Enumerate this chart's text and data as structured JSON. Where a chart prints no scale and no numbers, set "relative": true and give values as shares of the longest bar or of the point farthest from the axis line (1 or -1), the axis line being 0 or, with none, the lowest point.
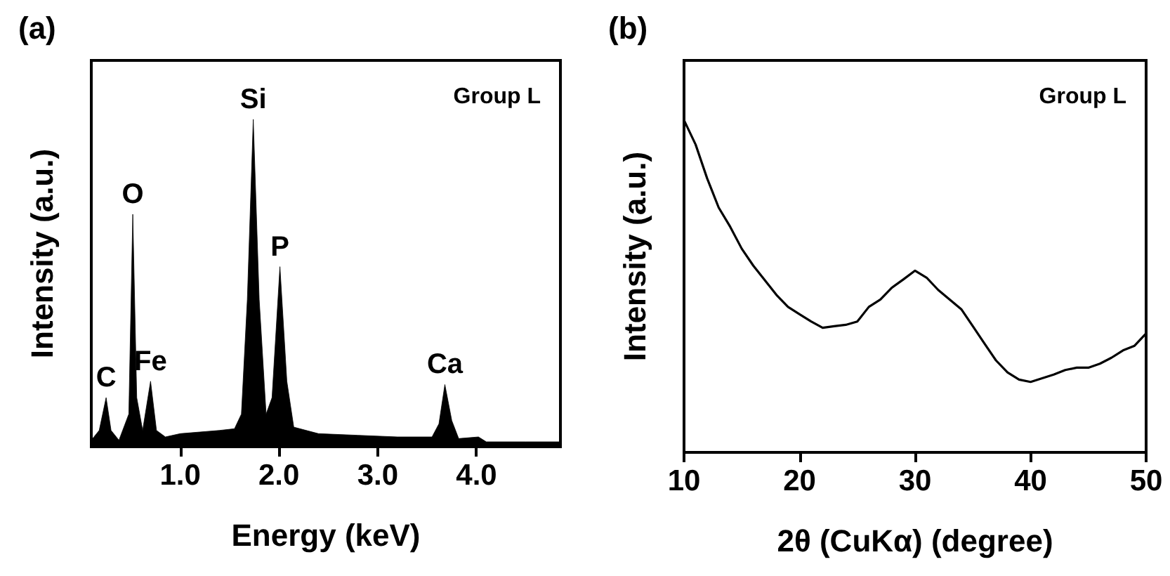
{
  "chart_data": [
    {
      "type": "area",
      "title": "(a)",
      "xlabel": "Energy (keV)",
      "ylabel": "Intensity (a.u.)",
      "relative": true,
      "color": "#000000",
      "xlim": [
        0.1,
        4.85
      ],
      "xticks": [
        {
          "value": 1,
          "label": "1.0"
        },
        {
          "value": 2,
          "label": "2.0"
        },
        {
          "value": 3,
          "label": "3.0"
        },
        {
          "value": 4,
          "label": "4.0"
        }
      ],
      "x": [
        0.1,
        0.18,
        0.25,
        0.3,
        0.38,
        0.48,
        0.52,
        0.56,
        0.62,
        0.7,
        0.76,
        0.85,
        1.0,
        1.2,
        1.4,
        1.55,
        1.62,
        1.68,
        1.74,
        1.8,
        1.87,
        1.93,
        2.01,
        2.08,
        2.15,
        2.4,
        2.8,
        3.2,
        3.55,
        3.62,
        3.68,
        3.75,
        3.82,
        4.02,
        4.1,
        4.5,
        4.85
      ],
      "values": [
        0.02,
        0.05,
        0.15,
        0.05,
        0.02,
        0.1,
        0.71,
        0.15,
        0.05,
        0.2,
        0.05,
        0.03,
        0.04,
        0.045,
        0.05,
        0.055,
        0.1,
        0.45,
        1.0,
        0.45,
        0.1,
        0.15,
        0.55,
        0.2,
        0.06,
        0.04,
        0.035,
        0.03,
        0.03,
        0.07,
        0.19,
        0.08,
        0.025,
        0.03,
        0.015,
        0.015,
        0.015
      ],
      "annotations": [
        "Group L",
        {
          "text": "C",
          "x": 0.25,
          "y": 0.15
        },
        {
          "text": "O",
          "x": 0.52,
          "y": 0.71
        },
        {
          "text": "Fe",
          "x": 0.7,
          "y": 0.2
        },
        {
          "text": "Si",
          "x": 1.74,
          "y": 1.0
        },
        {
          "text": "P",
          "x": 2.01,
          "y": 0.55
        },
        {
          "text": "Ca",
          "x": 3.68,
          "y": 0.19
        }
      ]
    },
    {
      "type": "line",
      "title": "(b)",
      "xlabel": "2θ (CuKα) (degree)",
      "ylabel": "Intensity (a.u.)",
      "relative": true,
      "color": "#000000",
      "xlim": [
        10,
        50
      ],
      "xticks": [
        10,
        20,
        30,
        40,
        50
      ],
      "x": [
        10,
        11,
        12,
        13,
        14,
        15,
        16,
        17,
        18,
        19,
        20,
        21,
        22,
        23,
        24,
        25,
        26,
        27,
        28,
        29,
        30,
        31,
        32,
        33,
        34,
        35,
        36,
        37,
        38,
        39,
        40,
        41,
        42,
        43,
        44,
        45,
        46,
        47,
        48,
        49,
        50
      ],
      "values": [
        1.0,
        0.927,
        0.825,
        0.737,
        0.679,
        0.613,
        0.562,
        0.518,
        0.474,
        0.438,
        0.416,
        0.394,
        0.375,
        0.38,
        0.384,
        0.394,
        0.438,
        0.46,
        0.496,
        0.521,
        0.547,
        0.526,
        0.489,
        0.46,
        0.431,
        0.38,
        0.328,
        0.277,
        0.241,
        0.219,
        0.212,
        0.223,
        0.234,
        0.248,
        0.255,
        0.255,
        0.267,
        0.285,
        0.307,
        0.321,
        0.358
      ],
      "annotations": [
        "Group L"
      ]
    }
  ]
}
